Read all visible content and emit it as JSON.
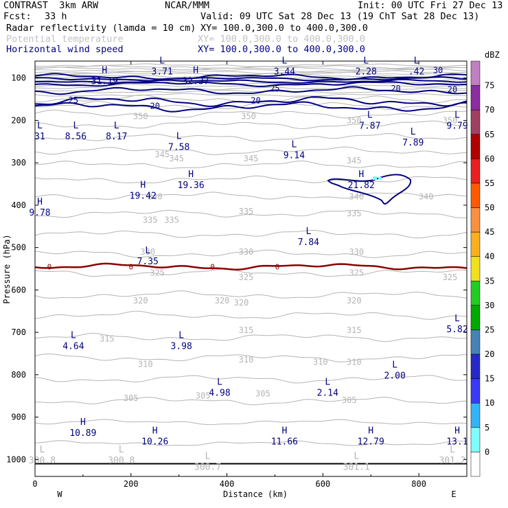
{
  "header": {
    "model": "CONTRAST  3km ARW",
    "org": "NCAR/MMM",
    "init": "Init: 00 UTC Fri 27 Dec 13",
    "fcst_label": "Fcst:",
    "fcst_value": "33 h",
    "valid": "Valid: 09 UTC Sat 28 Dec 13 (19 ChT Sat 28 Dec 13)",
    "fields": [
      {
        "name": "Radar reflectivity (lamda = 10 cm)",
        "xy": "XY= 100.0,300.0 to 400.0,300.0"
      },
      {
        "name": "Potential temperature",
        "xy": "XY= 100.0,300.0 to 400.0,300.0"
      },
      {
        "name": "Horizontal wind speed",
        "xy": "XY= 100.0,300.0 to 400.0,300.0"
      }
    ]
  },
  "colors": {
    "theta": "#b4b4b4",
    "wind": "#000080",
    "freezing": "#8b0000",
    "grid": "#000000"
  },
  "chart_data": {
    "type": "contour cross-section",
    "xlabel": "Distance (km)",
    "ylabel": "Pressure (hPa)",
    "xlim": [
      0,
      900
    ],
    "ylim": [
      1040,
      60
    ],
    "x_ticks": [
      0,
      200,
      400,
      600,
      800
    ],
    "y_ticks": [
      100,
      200,
      300,
      400,
      500,
      600,
      700,
      800,
      900,
      1000
    ],
    "direction_left": "W",
    "direction_right": "E",
    "colorbar": {
      "title": "dBZ",
      "levels": [
        "0",
        "5",
        "10",
        "15",
        "20",
        "25",
        "30",
        "35",
        "40",
        "45",
        "50",
        "55",
        "60",
        "65",
        "70",
        "75"
      ],
      "colors": [
        "#ffffff",
        "#7ffcfc",
        "#34b4f4",
        "#3a3af4",
        "#2828c8",
        "#4682b4",
        "#00aa00",
        "#22cc22",
        "#f0e020",
        "#f8b020",
        "#f89040",
        "#ff5a00",
        "#e82020",
        "#b00000",
        "#a04060",
        "#8c2ca0",
        "#c080c0"
      ]
    },
    "theta_labels": [
      {
        "text": "350",
        "x": 220,
        "p": 190
      },
      {
        "text": "350",
        "x": 445,
        "p": 190
      },
      {
        "text": "350",
        "x": 665,
        "p": 200
      },
      {
        "text": "350",
        "x": 865,
        "p": 200
      },
      {
        "text": "345",
        "x": 265,
        "p": 280
      },
      {
        "text": "345",
        "x": 295,
        "p": 290
      },
      {
        "text": "345",
        "x": 450,
        "p": 290
      },
      {
        "text": "345",
        "x": 665,
        "p": 295
      },
      {
        "text": "340",
        "x": 250,
        "p": 380
      },
      {
        "text": "340",
        "x": 670,
        "p": 380
      },
      {
        "text": "340",
        "x": 815,
        "p": 380
      },
      {
        "text": "335",
        "x": 240,
        "p": 435
      },
      {
        "text": "335",
        "x": 285,
        "p": 435
      },
      {
        "text": "335",
        "x": 440,
        "p": 415
      },
      {
        "text": "335",
        "x": 665,
        "p": 420
      },
      {
        "text": "330",
        "x": 235,
        "p": 510
      },
      {
        "text": "330",
        "x": 440,
        "p": 510
      },
      {
        "text": "330",
        "x": 670,
        "p": 510
      },
      {
        "text": "325",
        "x": 255,
        "p": 560
      },
      {
        "text": "325",
        "x": 440,
        "p": 570
      },
      {
        "text": "325",
        "x": 670,
        "p": 560
      },
      {
        "text": "325",
        "x": 865,
        "p": 570
      },
      {
        "text": "320",
        "x": 220,
        "p": 625
      },
      {
        "text": "320",
        "x": 390,
        "p": 625
      },
      {
        "text": "320",
        "x": 430,
        "p": 630
      },
      {
        "text": "320",
        "x": 665,
        "p": 625
      },
      {
        "text": "315",
        "x": 150,
        "p": 715
      },
      {
        "text": "315",
        "x": 440,
        "p": 695
      },
      {
        "text": "315",
        "x": 665,
        "p": 695
      },
      {
        "text": "310",
        "x": 230,
        "p": 775
      },
      {
        "text": "310",
        "x": 440,
        "p": 765
      },
      {
        "text": "310",
        "x": 595,
        "p": 770
      },
      {
        "text": "310",
        "x": 665,
        "p": 770
      },
      {
        "text": "305",
        "x": 200,
        "p": 855
      },
      {
        "text": "305",
        "x": 350,
        "p": 850
      },
      {
        "text": "305",
        "x": 475,
        "p": 845
      },
      {
        "text": "305",
        "x": 655,
        "p": 860
      }
    ],
    "wind_labels": [
      {
        "text": "30",
        "x": 840,
        "p": 82
      },
      {
        "text": "25",
        "x": 80,
        "p": 152
      },
      {
        "text": "25",
        "x": 500,
        "p": 125
      },
      {
        "text": "20",
        "x": 250,
        "p": 166
      },
      {
        "text": "20",
        "x": 460,
        "p": 153
      },
      {
        "text": "20",
        "x": 752,
        "p": 125
      },
      {
        "text": "20",
        "x": 870,
        "p": 127
      }
    ],
    "hl_markers": [
      {
        "hl": "L",
        "val": "3.71",
        "x": 265,
        "p": 72
      },
      {
        "hl": "L",
        "val": "3.44",
        "x": 520,
        "p": 72
      },
      {
        "hl": "L",
        "val": "2.28",
        "x": 690,
        "p": 72
      },
      {
        "hl": "L",
        "val": ".42",
        "x": 795,
        "p": 72
      },
      {
        "hl": "H",
        "val": "31.19",
        "x": 145,
        "p": 95
      },
      {
        "hl": "H",
        "val": "32.37",
        "x": 335,
        "p": 95
      },
      {
        "hl": "L",
        "val": "31",
        "x": 10,
        "p": 225
      },
      {
        "hl": "L",
        "val": "8.56",
        "x": 85,
        "p": 225
      },
      {
        "hl": "L",
        "val": "8.17",
        "x": 170,
        "p": 225
      },
      {
        "hl": "L",
        "val": "7.58",
        "x": 300,
        "p": 250
      },
      {
        "hl": "L",
        "val": "7.87",
        "x": 698,
        "p": 200
      },
      {
        "hl": "L",
        "val": "7.89",
        "x": 788,
        "p": 240
      },
      {
        "hl": "L",
        "val": "9.79",
        "x": 880,
        "p": 200
      },
      {
        "hl": "L",
        "val": "9.14",
        "x": 540,
        "p": 270
      },
      {
        "hl": "H",
        "val": "19.36",
        "x": 325,
        "p": 340
      },
      {
        "hl": "H",
        "val": "19.42",
        "x": 225,
        "p": 365
      },
      {
        "hl": "H",
        "val": "21.82",
        "x": 680,
        "p": 340
      },
      {
        "hl": "H",
        "val": "9.78",
        "x": 10,
        "p": 405
      },
      {
        "hl": "L",
        "val": "7.84",
        "x": 570,
        "p": 475
      },
      {
        "hl": "L",
        "val": "7.35",
        "x": 235,
        "p": 520
      },
      {
        "hl": "L",
        "val": "4.64",
        "x": 80,
        "p": 720
      },
      {
        "hl": "L",
        "val": "3.98",
        "x": 305,
        "p": 720
      },
      {
        "hl": "L",
        "val": "5.82",
        "x": 880,
        "p": 680
      },
      {
        "hl": "L",
        "val": "2.00",
        "x": 750,
        "p": 790
      },
      {
        "hl": "L",
        "val": "4.98",
        "x": 385,
        "p": 830
      },
      {
        "hl": "L",
        "val": "2.14",
        "x": 610,
        "p": 830
      },
      {
        "hl": "H",
        "val": "10.89",
        "x": 100,
        "p": 925
      },
      {
        "hl": "H",
        "val": "10.26",
        "x": 250,
        "p": 945
      },
      {
        "hl": "H",
        "val": "11.66",
        "x": 520,
        "p": 945
      },
      {
        "hl": "H",
        "val": "12.79",
        "x": 700,
        "p": 945
      },
      {
        "hl": "H",
        "val": "13.1",
        "x": 880,
        "p": 945
      }
    ],
    "sfc_labels": [
      {
        "hl": "L",
        "val": "300.8",
        "x": 15,
        "p": 990
      },
      {
        "hl": "L",
        "val": "300.8",
        "x": 180,
        "p": 990
      },
      {
        "hl": "L",
        "val": "300.7",
        "x": 360,
        "p": 1005
      },
      {
        "hl": "L",
        "val": "301.1",
        "x": 670,
        "p": 1005
      },
      {
        "hl": "L",
        "val": "301.2",
        "x": 870,
        "p": 990
      }
    ],
    "freezing_label": "0",
    "freezing_label_x": [
      30,
      200,
      370,
      505
    ]
  }
}
